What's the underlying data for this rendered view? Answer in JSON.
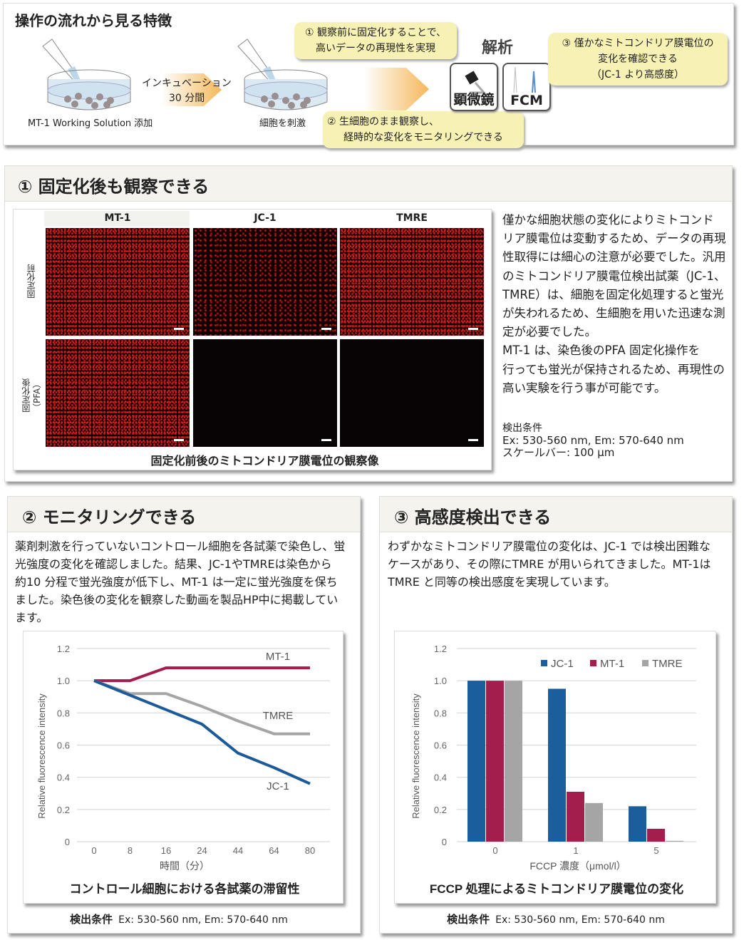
{
  "workflow": {
    "title": "操作の流れから見る特徴",
    "step1_label": "MT-1 Working Solution 添加",
    "incubation_line1": "インキュベーション",
    "incubation_line2": "30 分間",
    "step2_label": "細胞を刺激",
    "analysis_label": "解析",
    "microscope_label": "顕微鏡",
    "fcm_label": "FCM",
    "callout1": [
      "① 観察前に固定化することで、",
      "高いデータの再現性を実現"
    ],
    "callout2": [
      "② 生細胞のまま観察し、",
      "経時的な変化をモニタリングできる"
    ],
    "callout3": [
      "③ 僅かなミトコンドリア膜電位の",
      "変化を確認できる",
      "（JC-1 より高感度）"
    ],
    "callout_color": "#f8f1b4",
    "arrow_color": "#f5b85a"
  },
  "section1": {
    "title": "① 固定化後も観察できる",
    "figure": {
      "columns": [
        "MT-1",
        "JC-1",
        "TMRE"
      ],
      "rows": [
        "固定化前",
        "固定化後\n（PFA）"
      ],
      "row_label_before": "固定化前",
      "row_label_after_1": "固定化後",
      "row_label_after_2": "（PFA）",
      "signal": [
        [
          "bright",
          "bright",
          "bright"
        ],
        [
          "bright",
          "none",
          "none"
        ]
      ],
      "caption": "固定化前後のミトコンドリア膜電位の観察像"
    },
    "text": [
      "僅かな細胞状態の変化によりミトコンド",
      "リア膜電位は変動するため、データの再現",
      "性取得には細心の注意が必要でした。汎用",
      "のミトコンドリア膜電位検出試薬（JC-1、",
      "TMRE）は、細胞を固定化処理すると蛍光",
      "が失われるため、生細胞を用いた迅速な測",
      "定が必要でした。",
      "MT-1 は、染色後のPFA 固定化操作を",
      "行っても蛍光が保持されるため、再現性の",
      "高い実験を行う事が可能です。"
    ],
    "conditions": [
      "検出条件",
      "Ex: 530-560  nm, Em: 570-640 nm",
      "スケールバー: 100 μm"
    ]
  },
  "section2": {
    "title": "② モニタリングできる",
    "text": [
      "薬剤刺激を行っていないコントロール細胞を各試薬で染色し、蛍",
      "光強度の変化を確認しました。結果、JC-1やTMREは染色から",
      "約10 分程で蛍光強度が低下し、MT-1 は一定に蛍光強度を保ち",
      "ました。染色後の変化を観察した動画を製品HP中に掲載してい",
      "ます。"
    ],
    "conditions_label": "検出条件",
    "conditions_value": "Ex: 530-560 nm, Em: 570-640 nm"
  },
  "section3": {
    "title": "③ 高感度検出できる",
    "text": [
      "わずかなミトコンドリア膜電位の変化は、JC-1 では検出困難な",
      "ケースがあり、その際にTMRE が用いられてきました。MT-1は",
      "TMRE と同等の検出感度を実現しています。"
    ],
    "conditions_label": "検出条件",
    "conditions_value": "Ex: 530-560 nm, Em: 570-640 nm"
  },
  "chart_data": [
    {
      "type": "line",
      "title": "コントロール細胞における各試薬の滞留性",
      "xlabel": "時間（分）",
      "ylabel": "Relative fluorescence intensity",
      "categories": [
        "0",
        "8",
        "16",
        "24",
        "44",
        "64",
        "80"
      ],
      "ylim": [
        0,
        1.2
      ],
      "yticks": [
        "0",
        "0.2",
        "0.4",
        "0.6",
        "0.8",
        "1.0",
        "1.2"
      ],
      "grid": true,
      "legend": "inline labels",
      "series": [
        {
          "name": "MT-1",
          "color": "#a31d4d",
          "values": [
            1.0,
            1.0,
            1.08,
            1.08,
            1.08,
            1.08,
            1.08
          ]
        },
        {
          "name": "TMRE",
          "color": "#a5a5a5",
          "values": [
            1.0,
            0.92,
            0.92,
            0.84,
            0.75,
            0.67,
            0.67
          ]
        },
        {
          "name": "JC-1",
          "color": "#1d5a9a",
          "values": [
            1.0,
            0.91,
            0.82,
            0.73,
            0.55,
            0.46,
            0.36
          ]
        }
      ]
    },
    {
      "type": "bar",
      "title": "FCCP 処理によるミトコンドリア膜電位の変化",
      "xlabel": "FCCP 濃度（μmol/l）",
      "ylabel": "Relative fluorescence intensity",
      "categories": [
        "0",
        "1",
        "5"
      ],
      "ylim": [
        0,
        1.2
      ],
      "yticks": [
        "0",
        "0.2",
        "0.4",
        "0.6",
        "0.8",
        "1.0",
        "1.2"
      ],
      "grid": true,
      "legend": "top-right",
      "series": [
        {
          "name": "JC-1",
          "color": "#1a5e9e",
          "values": [
            1.0,
            0.95,
            0.22
          ]
        },
        {
          "name": "MT-1",
          "color": "#a31d4d",
          "values": [
            1.0,
            0.31,
            0.08
          ]
        },
        {
          "name": "TMRE",
          "color": "#a5a5a5",
          "values": [
            1.0,
            0.24,
            0.005
          ]
        }
      ]
    }
  ]
}
